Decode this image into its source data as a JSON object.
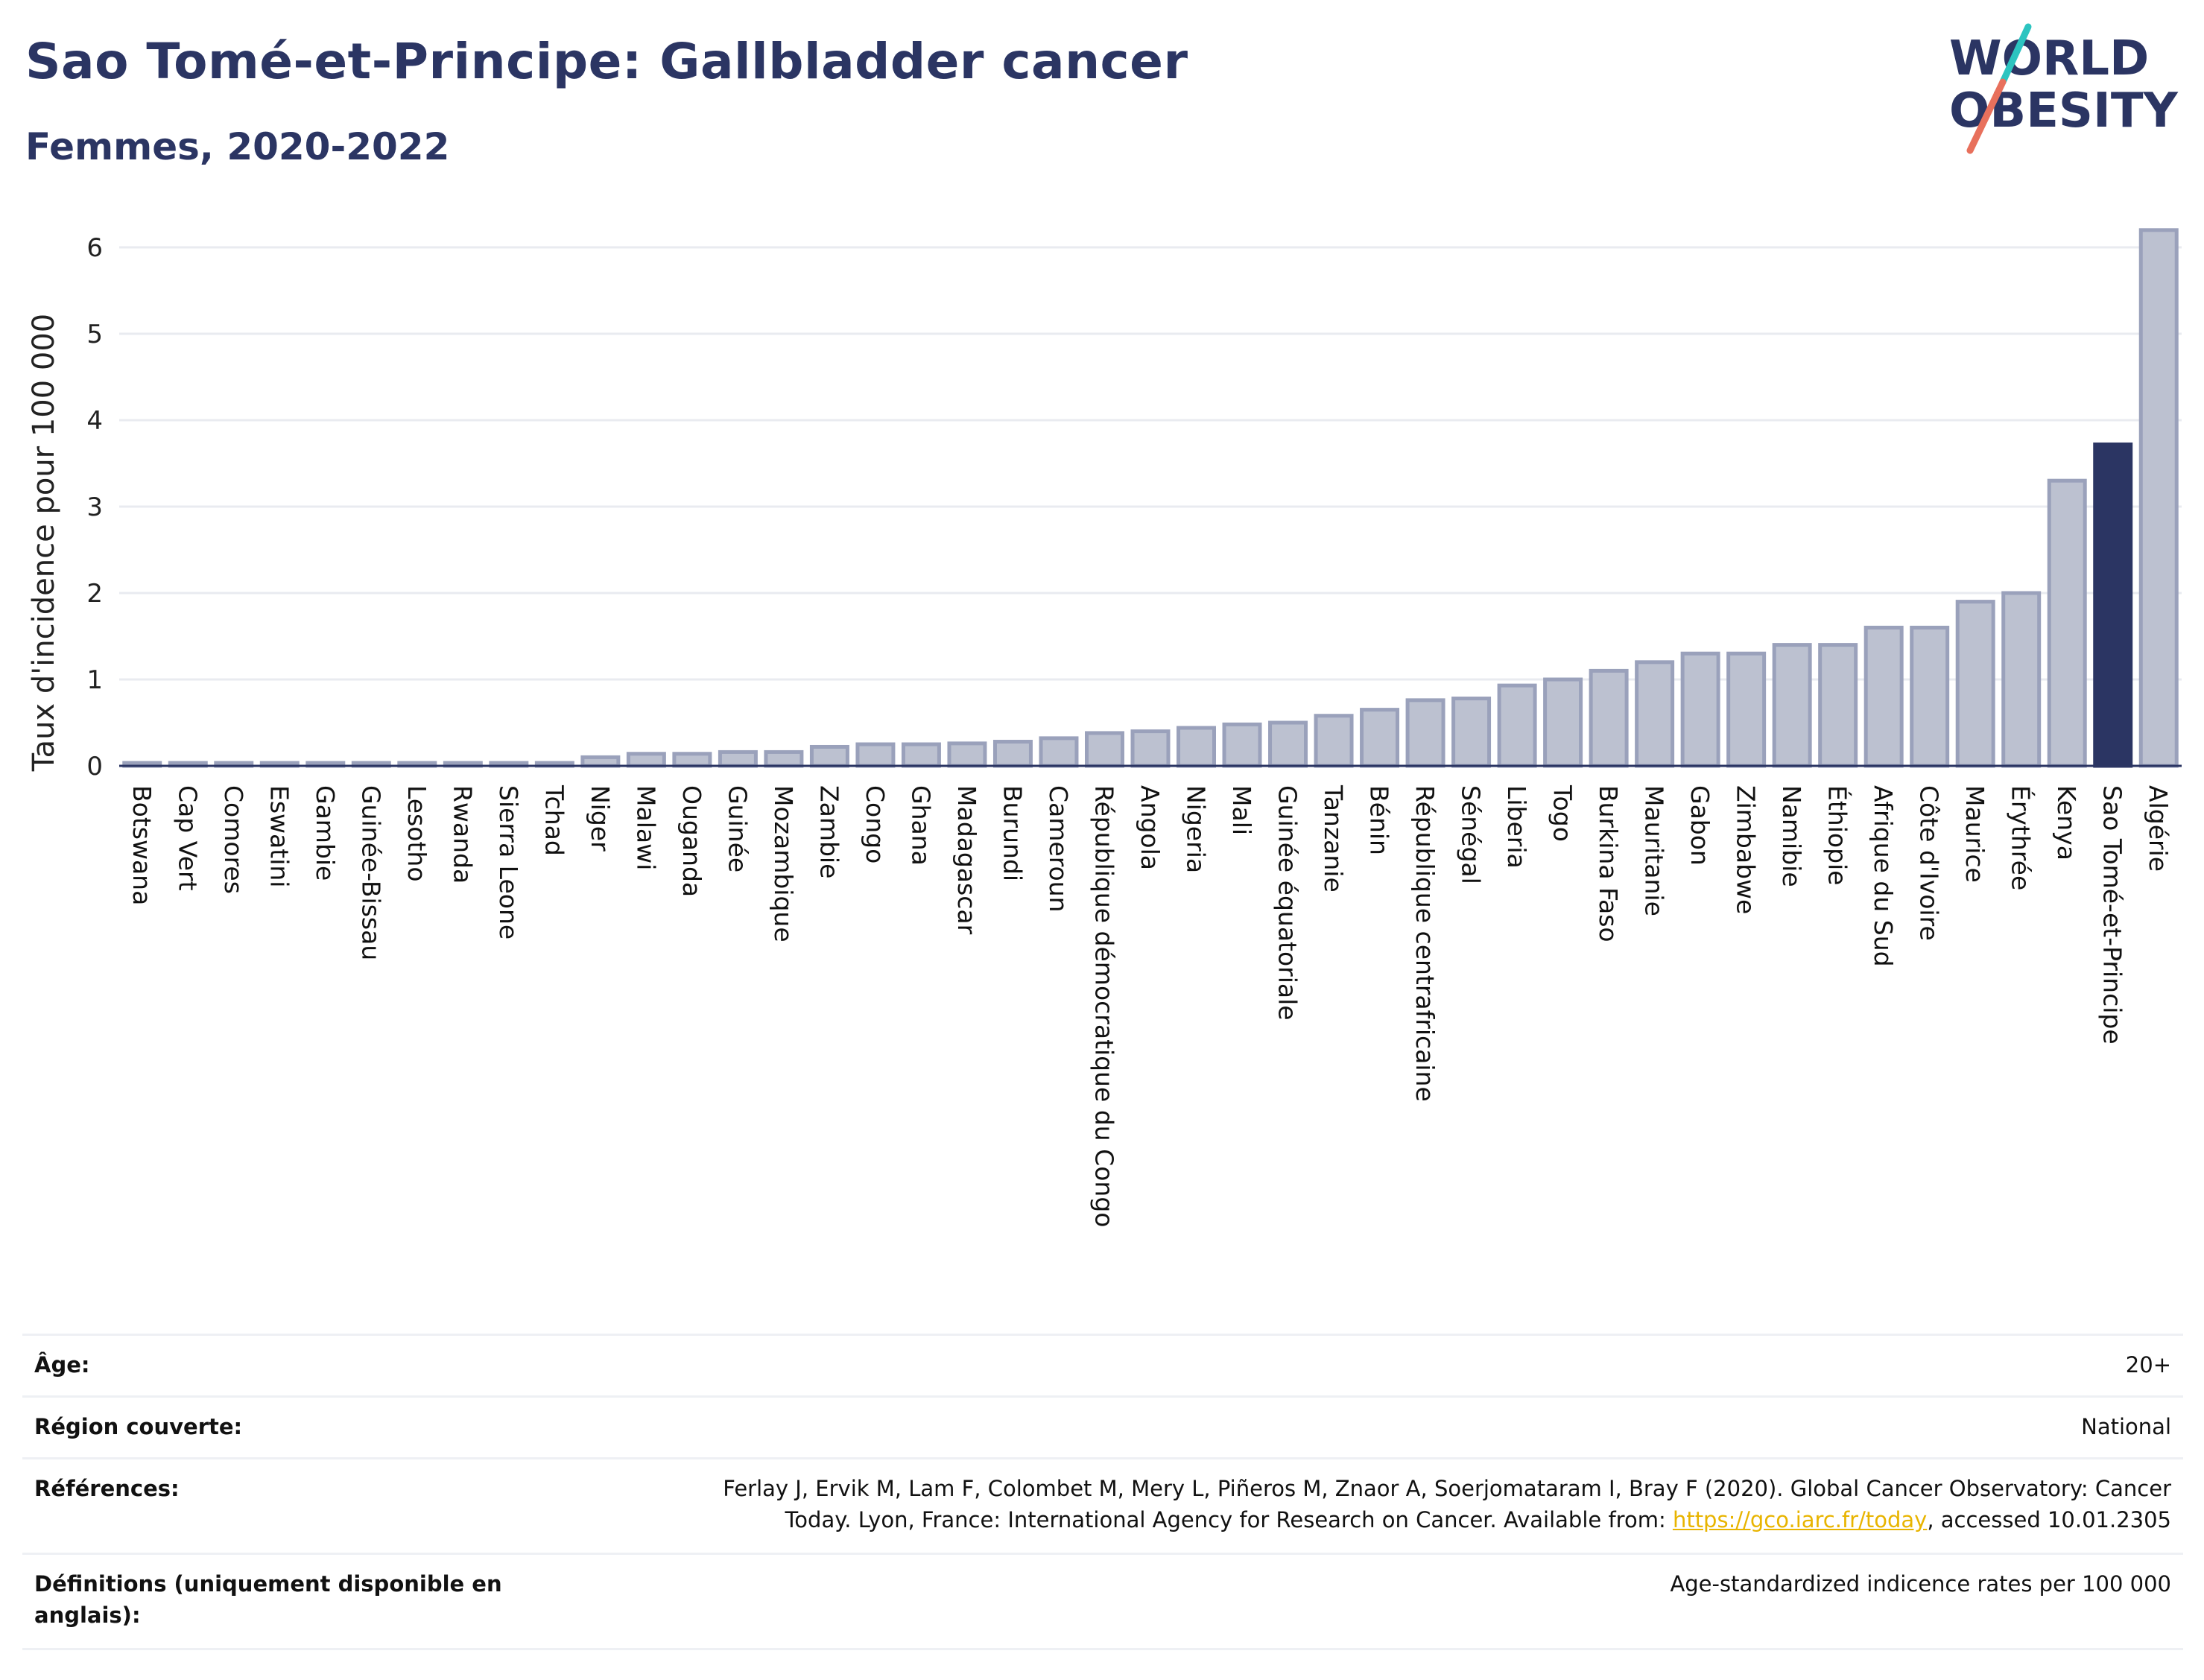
{
  "header": {
    "title": "Sao Tomé-et-Principe: Gallbladder cancer",
    "subtitle": "Femmes, 2020-2022"
  },
  "logo": {
    "line1": "WORLD",
    "line2": "OBESITY",
    "colors": {
      "text": "#2b3563",
      "slash_top": "#2cc4c0",
      "slash_bottom": "#e8705c"
    }
  },
  "colors": {
    "bar_fill": "#bcc1d0",
    "bar_stroke": "#9aa1bb",
    "highlight": "#2b3563",
    "grid": "#e9ebf0",
    "axis": "#2b3563"
  },
  "chart_data": {
    "type": "bar",
    "title": "Sao Tomé-et-Principe: Gallbladder cancer",
    "subtitle": "Femmes, 2020-2022",
    "ylabel": "Taux d'incidence pour 100 000",
    "xlabel": "",
    "ylim": [
      0,
      6.5
    ],
    "yticks": [
      0,
      1,
      2,
      3,
      4,
      5,
      6
    ],
    "grid": true,
    "highlight": "Sao Tomé-et-Principe",
    "categories": [
      "Botswana",
      "Cap Vert",
      "Comores",
      "Eswatini",
      "Gambie",
      "Guinée-Bissau",
      "Lesotho",
      "Rwanda",
      "Sierra Leone",
      "Tchad",
      "Niger",
      "Malawi",
      "Ouganda",
      "Guinée",
      "Mozambique",
      "Zambie",
      "Congo",
      "Ghana",
      "Madagascar",
      "Burundi",
      "Cameroun",
      "République démocratique du Congo",
      "Angola",
      "Nigeria",
      "Mali",
      "Guinée équatoriale",
      "Tanzanie",
      "Bénin",
      "République centrafricaine",
      "Sénégal",
      "Liberia",
      "Togo",
      "Burkina Faso",
      "Mauritanie",
      "Gabon",
      "Zimbabwe",
      "Namibie",
      "Éthiopie",
      "Afrique du Sud",
      "Côte d'Ivoire",
      "Maurice",
      "Érythrée",
      "Kenya",
      "Sao Tomé-et-Principe",
      "Algérie"
    ],
    "values": [
      0.02,
      0.02,
      0.02,
      0.02,
      0.02,
      0.02,
      0.02,
      0.02,
      0.02,
      0.02,
      0.1,
      0.14,
      0.14,
      0.16,
      0.16,
      0.22,
      0.25,
      0.25,
      0.26,
      0.28,
      0.32,
      0.38,
      0.4,
      0.44,
      0.48,
      0.5,
      0.58,
      0.65,
      0.76,
      0.78,
      0.93,
      1.0,
      1.1,
      1.2,
      1.3,
      1.3,
      1.4,
      1.4,
      1.6,
      1.6,
      1.9,
      2.0,
      3.3,
      3.72,
      6.2
    ]
  },
  "info_table": [
    {
      "label": "Âge:",
      "value": "20+"
    },
    {
      "label": "Région couverte:",
      "value": "National"
    },
    {
      "label": "Références:",
      "value_line1": "Ferlay J, Ervik M, Lam F, Colombet M, Mery L, Piñeros M, Znaor A, Soerjomataram I, Bray F (2020). Global Cancer Observatory: Cancer",
      "value_line2_pre": "Today. Lyon, France: International Agency for Research on Cancer. Available from: ",
      "link": "https://gco.iarc.fr/today",
      "value_line2_post": ", accessed 10.01.2305"
    },
    {
      "label_line1": "Définitions (uniquement disponible en",
      "label_line2": "anglais):",
      "value": "Age-standardized indicence rates per 100 000"
    }
  ]
}
